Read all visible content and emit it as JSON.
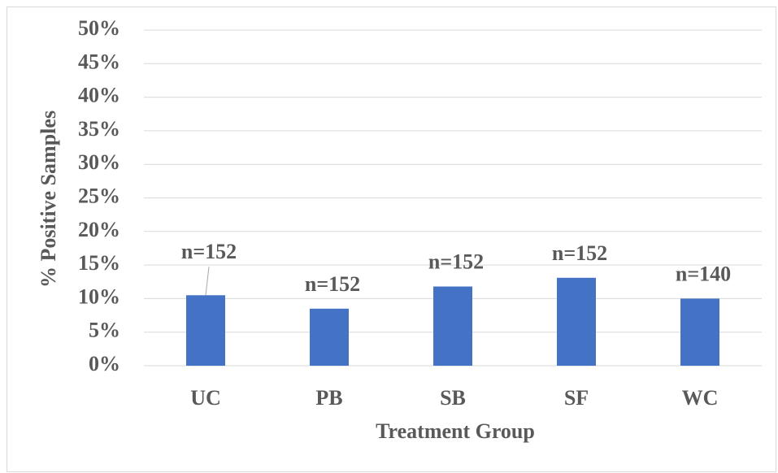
{
  "chart_data": {
    "type": "bar",
    "x_label": "Treatment Group",
    "y_label": "% Positive Samples",
    "categories": [
      "UC",
      "PB",
      "SB",
      "SF",
      "WC"
    ],
    "values": [
      10.5,
      8.5,
      11.8,
      13.1,
      10.0
    ],
    "annotations": [
      "n=152",
      "n=152",
      "n=152",
      "n=152",
      "n=140"
    ],
    "color": "#4472c4",
    "ylim": [
      0,
      50
    ],
    "yticks": [
      {
        "value": 0,
        "label": "0%"
      },
      {
        "value": 5,
        "label": "5%"
      },
      {
        "value": 10,
        "label": "10%"
      },
      {
        "value": 15,
        "label": "15%"
      },
      {
        "value": 20,
        "label": "20%"
      },
      {
        "value": 25,
        "label": "25%"
      },
      {
        "value": 30,
        "label": "30%"
      },
      {
        "value": 35,
        "label": "35%"
      },
      {
        "value": 40,
        "label": "40%"
      },
      {
        "value": 45,
        "label": "45%"
      },
      {
        "value": 50,
        "label": "50%"
      }
    ],
    "grid": true
  }
}
